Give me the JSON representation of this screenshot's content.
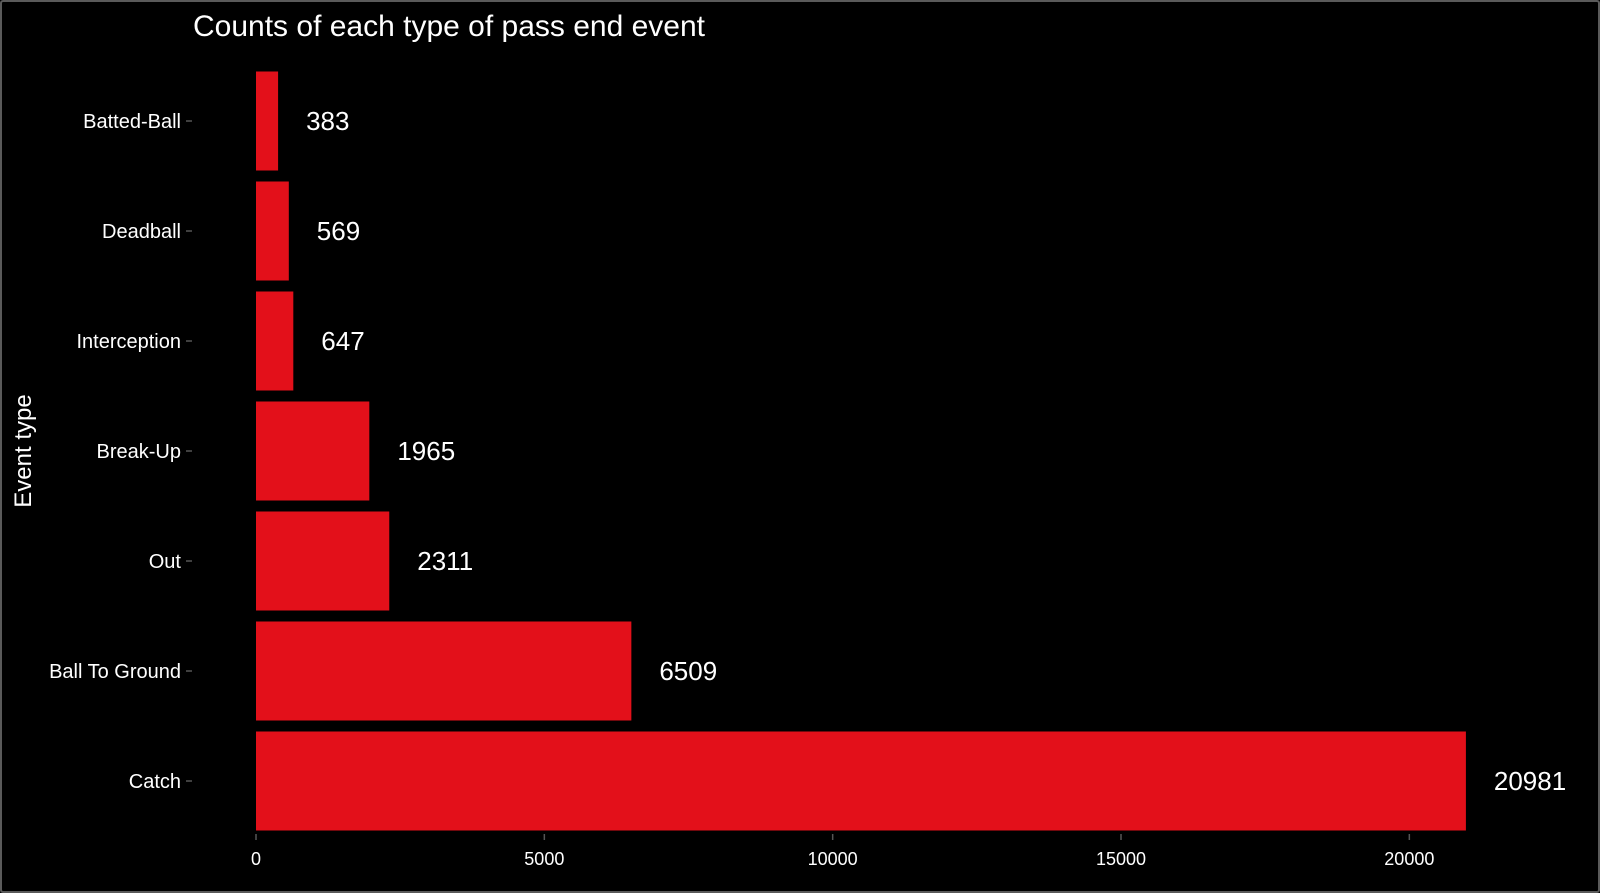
{
  "chart_data": {
    "type": "bar",
    "orientation": "horizontal",
    "title": "Counts of each type of pass end event",
    "ylabel": "Event type",
    "xlabel": "",
    "categories": [
      "Batted-Ball",
      "Deadball",
      "Interception",
      "Break-Up",
      "Out",
      "Ball To Ground",
      "Catch"
    ],
    "values": [
      383,
      569,
      647,
      1965,
      2311,
      6509,
      20981
    ],
    "value_labels": [
      "383",
      "569",
      "647",
      "1965",
      "2311",
      "6509",
      "20981"
    ],
    "x_ticks": [
      0,
      5000,
      10000,
      15000,
      20000
    ],
    "x_tick_labels": [
      "0",
      "5000",
      "10000",
      "15000",
      "20000"
    ],
    "xlim": [
      0,
      22000
    ],
    "grid": false,
    "legend": "none",
    "colors": {
      "bar": "#e3101a",
      "background": "#000000",
      "text": "#ffffff"
    }
  }
}
